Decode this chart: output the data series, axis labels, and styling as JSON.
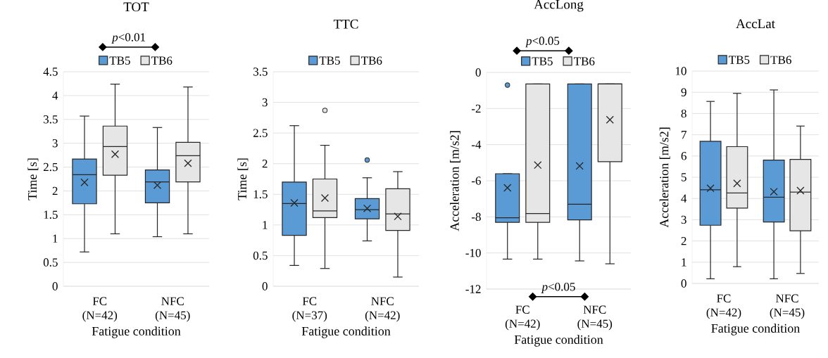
{
  "chart_data": [
    {
      "type": "box",
      "title": "TOT",
      "xlabel": "Fatigue condition",
      "ylabel": "Time [s]",
      "categories": [
        "FC (N=42)",
        "NFC (N=45)"
      ],
      "series": [
        {
          "name": "TB5",
          "color": "#5b9bd5",
          "boxes": [
            {
              "low": 0.72,
              "q1": 1.73,
              "median": 2.34,
              "q3": 2.67,
              "high": 3.57,
              "mean": 2.18
            },
            {
              "low": 1.04,
              "q1": 1.75,
              "median": 2.19,
              "q3": 2.44,
              "high": 3.33,
              "mean": 2.12
            }
          ]
        },
        {
          "name": "TB6",
          "color": "#e7e6e6",
          "boxes": [
            {
              "low": 1.1,
              "q1": 2.33,
              "median": 2.93,
              "q3": 3.36,
              "high": 4.24,
              "mean": 2.77
            },
            {
              "low": 1.1,
              "q1": 2.19,
              "median": 2.74,
              "q3": 3.02,
              "high": 4.18,
              "mean": 2.58
            }
          ]
        }
      ],
      "ylim": [
        0,
        4.5
      ],
      "yticks": [
        0,
        0.5,
        1,
        1.5,
        2,
        2.5,
        3,
        3.5,
        4,
        4.5
      ],
      "grid": "y",
      "legend": "top",
      "annotations": [
        "*p*<0.01"
      ]
    },
    {
      "type": "box",
      "title": "TTC",
      "xlabel": "Fatigue condition",
      "ylabel": "Time [s]",
      "categories": [
        "FC (N=37)",
        "NFC (N=42)"
      ],
      "series": [
        {
          "name": "TB5",
          "color": "#5b9bd5",
          "boxes": [
            {
              "low": 0.34,
              "q1": 0.83,
              "median": 1.35,
              "q3": 1.7,
              "high": 2.62,
              "mean": 1.36
            },
            {
              "low": 0.74,
              "q1": 1.1,
              "median": 1.25,
              "q3": 1.43,
              "high": 1.77,
              "mean": 1.27,
              "outliers": [
                2.06
              ]
            }
          ]
        },
        {
          "name": "TB6",
          "color": "#e7e6e6",
          "boxes": [
            {
              "low": 0.29,
              "q1": 1.12,
              "median": 1.23,
              "q3": 1.75,
              "high": 2.3,
              "mean": 1.44,
              "outliers": [
                2.87
              ]
            },
            {
              "low": 0.15,
              "q1": 0.91,
              "median": 1.18,
              "q3": 1.59,
              "high": 1.87,
              "mean": 1.14
            }
          ]
        }
      ],
      "ylim": [
        0,
        3.5
      ],
      "yticks": [
        0,
        0.5,
        1,
        1.5,
        2,
        2.5,
        3,
        3.5
      ],
      "grid": "y",
      "legend": "top"
    },
    {
      "type": "box",
      "title": "AccLong",
      "xlabel": "Fatigue condition",
      "ylabel": "Acceleration [m/s2]",
      "categories": [
        "FC (N=42)",
        "NFC (N=45)"
      ],
      "series": [
        {
          "name": "TB5",
          "color": "#5b9bd5",
          "boxes": [
            {
              "low": -10.34,
              "q1": -8.3,
              "median": -8.05,
              "q3": -5.61,
              "high": -5.61,
              "mean": -6.39,
              "outliers": [
                -0.7
              ]
            },
            {
              "low": -10.44,
              "q1": -8.17,
              "median": -7.3,
              "q3": -0.64,
              "high": -0.64,
              "mean": -5.18
            }
          ]
        },
        {
          "name": "TB6",
          "color": "#e7e6e6",
          "boxes": [
            {
              "low": -10.34,
              "q1": -8.3,
              "median": -7.82,
              "q3": -0.64,
              "high": -0.64,
              "mean": -5.13
            },
            {
              "low": -10.6,
              "q1": -4.94,
              "median": -0.64,
              "q3": -0.64,
              "high": -0.64,
              "mean": -2.62
            }
          ]
        }
      ],
      "ylim": [
        -12,
        0
      ],
      "yticks": [
        -12,
        -10,
        -8,
        -6,
        -4,
        -2,
        0
      ],
      "grid": "y",
      "legend": "top",
      "annotations": [
        "*p*<0.05",
        "*p*<0.05"
      ]
    },
    {
      "type": "box",
      "title": "AccLat",
      "xlabel": "Fatigue condition",
      "ylabel": "Acceleration [m/s2]",
      "categories": [
        "FC (N=42)",
        "NFC (N=45)"
      ],
      "series": [
        {
          "name": "TB5",
          "color": "#5b9bd5",
          "boxes": [
            {
              "low": 0.22,
              "q1": 2.74,
              "median": 4.41,
              "q3": 6.69,
              "high": 8.57,
              "mean": 4.48
            },
            {
              "low": 0.22,
              "q1": 2.89,
              "median": 4.06,
              "q3": 5.81,
              "high": 9.11,
              "mean": 4.32
            }
          ]
        },
        {
          "name": "TB6",
          "color": "#e7e6e6",
          "boxes": [
            {
              "low": 0.79,
              "q1": 3.55,
              "median": 4.26,
              "q3": 6.44,
              "high": 8.95,
              "mean": 4.71
            },
            {
              "low": 0.47,
              "q1": 2.48,
              "median": 4.3,
              "q3": 5.84,
              "high": 7.41,
              "mean": 4.37
            }
          ]
        }
      ],
      "ylim": [
        0,
        10
      ],
      "yticks": [
        0,
        1,
        2,
        3,
        4,
        5,
        6,
        7,
        8,
        9,
        10
      ],
      "grid": "y",
      "legend": "top"
    }
  ]
}
